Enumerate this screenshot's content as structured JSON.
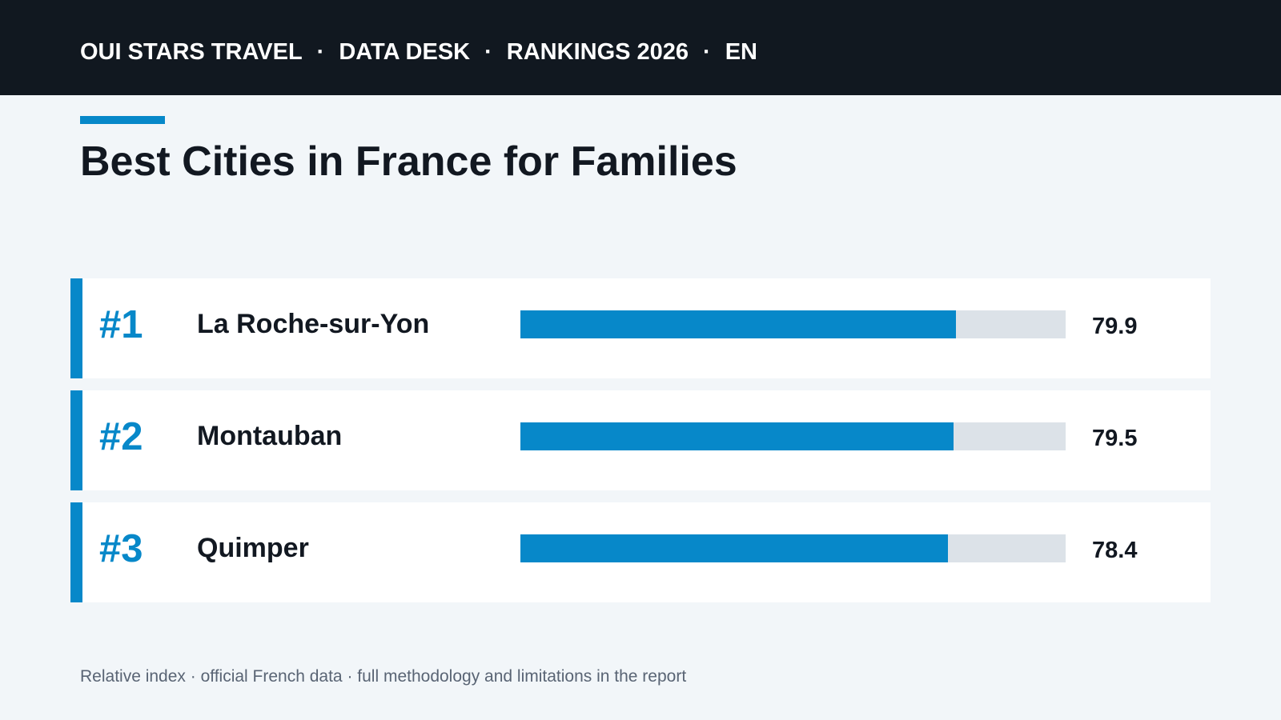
{
  "header": {
    "crumbs": [
      "OUI STARS TRAVEL",
      "DATA DESK",
      "RANKINGS 2026",
      "EN"
    ],
    "separator": "·"
  },
  "title": "Best Cities in France for Families",
  "colors": {
    "accent": "#0788c9",
    "track": "#dce2e8",
    "header_bg": "#111820",
    "text": "#121821"
  },
  "chart_data": {
    "type": "bar",
    "title": "Best Cities in France for Families",
    "categories": [
      "La Roche-sur-Yon",
      "Montauban",
      "Quimper"
    ],
    "ranks": [
      "#1",
      "#2",
      "#3"
    ],
    "values": [
      79.9,
      79.5,
      78.4
    ],
    "value_labels": [
      "79.9",
      "79.5",
      "78.4"
    ],
    "xlim": [
      0,
      100
    ],
    "grid": false,
    "legend": "none"
  },
  "footnote": "Relative index · official French data · full methodology and limitations in the report"
}
